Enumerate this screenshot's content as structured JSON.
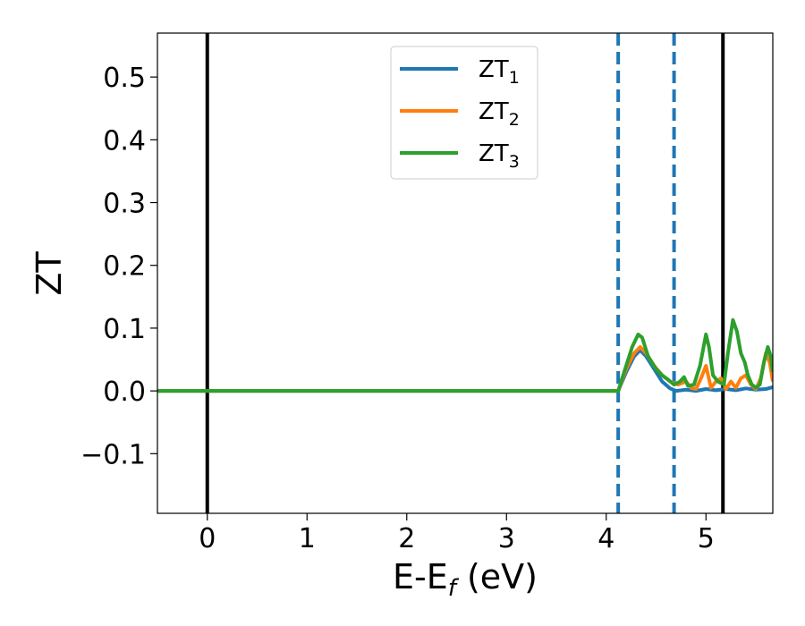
{
  "chart_data": {
    "type": "line",
    "xlabel": "E-E",
    "xlabel_sub": "f",
    "xlabel_unit": " (eV)",
    "ylabel": "ZT",
    "xlim": [
      -0.5,
      5.67
    ],
    "ylim": [
      -0.195,
      0.57
    ],
    "grid": false,
    "legend_position": "top-center",
    "x_ticks": [
      0,
      1,
      2,
      3,
      4,
      5
    ],
    "x_tick_labels": [
      "0",
      "1",
      "2",
      "3",
      "4",
      "5"
    ],
    "y_ticks": [
      -0.1,
      0.0,
      0.1,
      0.2,
      0.3,
      0.4,
      0.5
    ],
    "y_tick_labels": [
      "−0.1",
      "0.0",
      "0.1",
      "0.2",
      "0.3",
      "0.4",
      "0.5"
    ],
    "vertical_lines": [
      {
        "x": 0.0,
        "style": "solid",
        "color": "#000000"
      },
      {
        "x": 4.12,
        "style": "dashed",
        "color": "#1f77b4"
      },
      {
        "x": 4.68,
        "style": "dashed",
        "color": "#1f77b4"
      },
      {
        "x": 5.17,
        "style": "solid",
        "color": "#000000"
      }
    ],
    "series": [
      {
        "name": "ZT",
        "name_sub": "1",
        "color": "#1f77b4",
        "x": [
          -0.5,
          4.12,
          4.2,
          4.28,
          4.34,
          4.4,
          4.48,
          4.56,
          4.64,
          4.7,
          4.8,
          4.9,
          5.0,
          5.1,
          5.2,
          5.3,
          5.4,
          5.5,
          5.6,
          5.67
        ],
        "y": [
          0.0,
          0.0,
          0.03,
          0.055,
          0.065,
          0.055,
          0.035,
          0.015,
          0.004,
          0.0,
          0.002,
          0.0,
          0.003,
          0.001,
          0.003,
          0.001,
          0.004,
          0.002,
          0.003,
          0.006
        ]
      },
      {
        "name": "ZT",
        "name_sub": "2",
        "color": "#ff7f0e",
        "x": [
          -0.5,
          4.12,
          4.2,
          4.28,
          4.34,
          4.4,
          4.48,
          4.56,
          4.64,
          4.72,
          4.8,
          4.85,
          4.9,
          4.95,
          5.0,
          5.05,
          5.1,
          5.15,
          5.2,
          5.25,
          5.3,
          5.35,
          5.4,
          5.45,
          5.5,
          5.55,
          5.6,
          5.64,
          5.67
        ],
        "y": [
          0.0,
          0.0,
          0.035,
          0.06,
          0.07,
          0.06,
          0.04,
          0.025,
          0.015,
          0.01,
          0.015,
          0.005,
          0.003,
          0.02,
          0.04,
          0.005,
          0.015,
          0.02,
          0.003,
          0.015,
          0.005,
          0.02,
          0.025,
          0.01,
          0.003,
          0.02,
          0.06,
          0.045,
          0.015
        ]
      },
      {
        "name": "ZT",
        "name_sub": "3",
        "color": "#2ca02c",
        "x": [
          -0.5,
          4.12,
          4.2,
          4.26,
          4.32,
          4.36,
          4.42,
          4.5,
          4.56,
          4.62,
          4.68,
          4.74,
          4.78,
          4.82,
          4.88,
          4.94,
          5.0,
          5.03,
          5.07,
          5.12,
          5.18,
          5.22,
          5.27,
          5.31,
          5.35,
          5.39,
          5.42,
          5.46,
          5.5,
          5.54,
          5.58,
          5.62,
          5.65,
          5.67
        ],
        "y": [
          0.0,
          0.0,
          0.04,
          0.07,
          0.09,
          0.085,
          0.055,
          0.035,
          0.025,
          0.018,
          0.01,
          0.015,
          0.022,
          0.008,
          0.01,
          0.04,
          0.09,
          0.07,
          0.025,
          0.015,
          0.01,
          0.06,
          0.113,
          0.095,
          0.06,
          0.045,
          0.025,
          0.01,
          0.005,
          0.01,
          0.045,
          0.07,
          0.055,
          0.03
        ]
      }
    ]
  }
}
